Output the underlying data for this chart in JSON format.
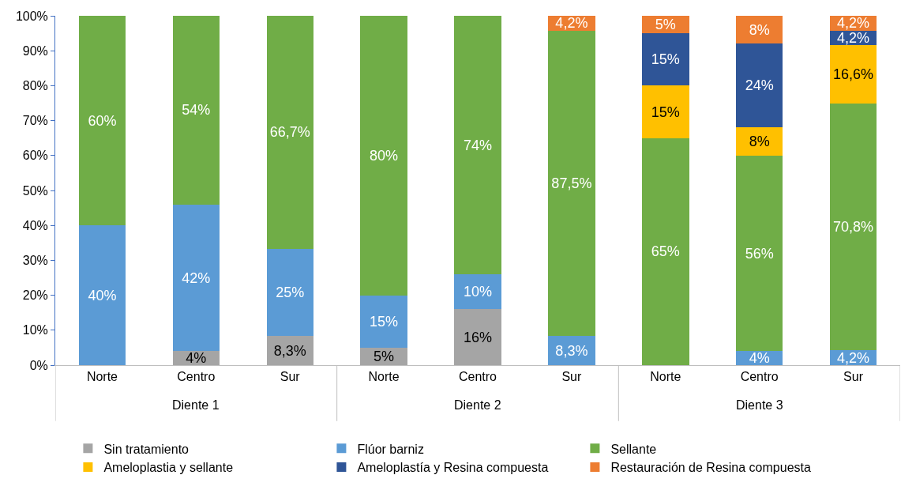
{
  "chart_data": {
    "type": "bar",
    "stacked": true,
    "categories": [
      "Norte",
      "Centro",
      "Sur",
      "Norte",
      "Centro",
      "Sur",
      "Norte",
      "Centro",
      "Sur"
    ],
    "annotations": [
      "Diente 1",
      "Diente 2",
      "Diente 3"
    ],
    "series": [
      {
        "name": "Sin tratamiento",
        "color": "#a5a5a5",
        "values": [
          null,
          4,
          8.3,
          5,
          16,
          null,
          null,
          null,
          null
        ],
        "value_labels": [
          null,
          "4%",
          "8,3%",
          "5%",
          "16%",
          null,
          null,
          null,
          null
        ]
      },
      {
        "name": "Flúor barniz",
        "color": "#5b9bd5",
        "values": [
          40,
          42,
          25,
          15,
          10,
          8.3,
          null,
          4,
          4.2
        ],
        "value_labels": [
          "40%",
          "42%",
          "25%",
          "15%",
          "10%",
          "8,3%",
          null,
          "4%",
          "4,2%"
        ]
      },
      {
        "name": "Sellante",
        "color": "#70ad47",
        "values": [
          60,
          54,
          66.7,
          80,
          74,
          87.5,
          65,
          56,
          70.8
        ],
        "value_labels": [
          "60%",
          "54%",
          "66,7%",
          "80%",
          "74%",
          "87,5%",
          "65%",
          "56%",
          "70,8%"
        ]
      },
      {
        "name": "Ameloplastia y sellante",
        "color": "#ffc000",
        "values": [
          null,
          null,
          null,
          null,
          null,
          null,
          15,
          8,
          16.6
        ],
        "value_labels": [
          null,
          null,
          null,
          null,
          null,
          null,
          "15%",
          "8%",
          "16,6%"
        ]
      },
      {
        "name": "Ameloplastía y Resina compuesta",
        "color": "#2f5597",
        "values": [
          null,
          null,
          null,
          null,
          null,
          null,
          15,
          24,
          4.2
        ],
        "value_labels": [
          null,
          null,
          null,
          null,
          null,
          null,
          "15%",
          "24%",
          "4,2%"
        ]
      },
      {
        "name": "Restauración de Resina compuesta",
        "color": "#ed7d31",
        "values": [
          null,
          null,
          null,
          null,
          null,
          4.2,
          5,
          8,
          4.2
        ],
        "value_labels": [
          null,
          null,
          null,
          null,
          null,
          "4,2%",
          "5%",
          "8%",
          "4,2%"
        ]
      }
    ],
    "ylim": [
      0,
      100
    ],
    "yticks": [
      {
        "value": 0,
        "label": "0%"
      },
      {
        "value": 10,
        "label": "10%"
      },
      {
        "value": 20,
        "label": "20%"
      },
      {
        "value": 30,
        "label": "30%"
      },
      {
        "value": 40,
        "label": "40%"
      },
      {
        "value": 50,
        "label": "50%"
      },
      {
        "value": 60,
        "label": "60%"
      },
      {
        "value": 70,
        "label": "70%"
      },
      {
        "value": 80,
        "label": "80%"
      },
      {
        "value": 90,
        "label": "90%"
      },
      {
        "value": 100,
        "label": "100%"
      }
    ],
    "legend": "bottom"
  }
}
